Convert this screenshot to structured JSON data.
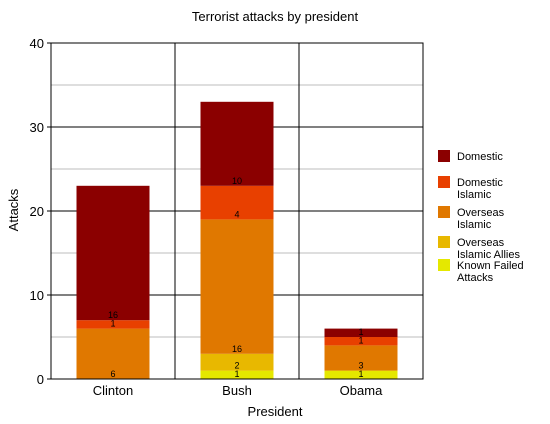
{
  "chart_data": {
    "type": "bar",
    "stacked": true,
    "title": "Terrorist attacks by president",
    "xlabel": "President",
    "ylabel": "Attacks",
    "ylim": [
      0,
      40
    ],
    "yticks": [
      0,
      10,
      20,
      30,
      40
    ],
    "grid": true,
    "legend_position": "right",
    "categories": [
      "Clinton",
      "Bush",
      "Obama"
    ],
    "series": [
      {
        "name": "Known Failed Attacks",
        "color": "#e5e800",
        "values": [
          0,
          1,
          1
        ],
        "labels": [
          "",
          "1",
          "1"
        ]
      },
      {
        "name": "Overseas Islamic Allies",
        "color": "#e8b800",
        "values": [
          0,
          2,
          0
        ],
        "labels": [
          "",
          "2",
          ""
        ]
      },
      {
        "name": "Overseas Islamic",
        "color": "#e07800",
        "values": [
          6,
          16,
          3
        ],
        "labels": [
          "6",
          "16",
          "3"
        ]
      },
      {
        "name": "Domestic Islamic",
        "color": "#e84000",
        "values": [
          1,
          4,
          1
        ],
        "labels": [
          "1",
          "4",
          "1"
        ]
      },
      {
        "name": "Domestic",
        "color": "#8b0000",
        "values": [
          16,
          10,
          1
        ],
        "labels": [
          "16",
          "10",
          "1"
        ]
      }
    ],
    "legend_order": [
      {
        "lines": [
          "Domestic"
        ],
        "color": "#8b0000"
      },
      {
        "lines": [
          "Domestic",
          "Islamic"
        ],
        "color": "#e84000"
      },
      {
        "lines": [
          "Overseas",
          "Islamic"
        ],
        "color": "#e07800"
      },
      {
        "lines": [
          "Overseas",
          "Islamic Allies"
        ],
        "color": "#e8b800"
      },
      {
        "lines": [
          "Known Failed",
          "Attacks"
        ],
        "color": "#e5e800"
      }
    ]
  }
}
